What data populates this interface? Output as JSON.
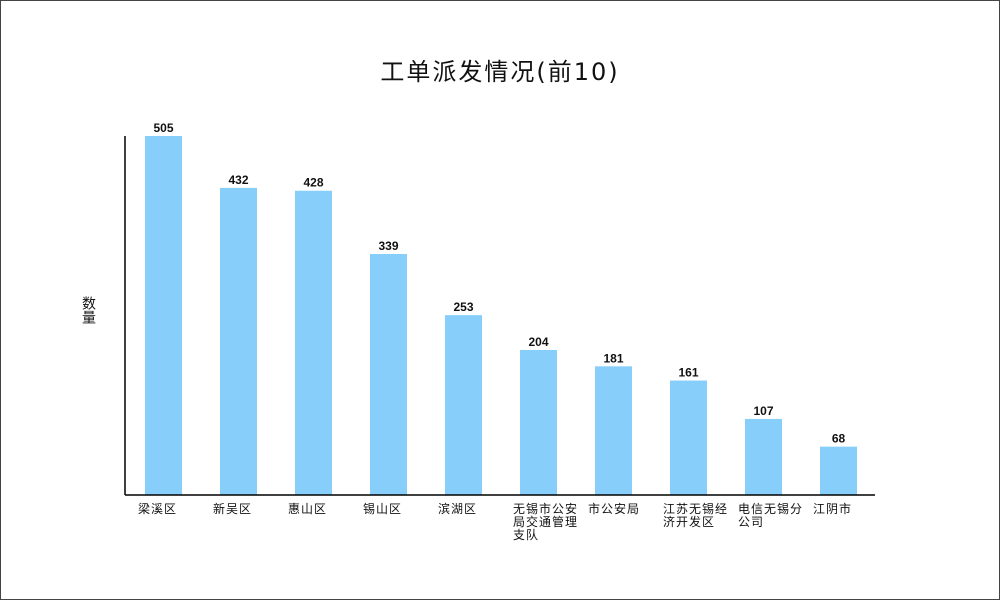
{
  "chart_data": {
    "type": "bar",
    "title": "工单派发情况(前10)",
    "xlabel": "",
    "ylabel": "数量",
    "categories": [
      "梁溪区",
      "新吴区",
      "惠山区",
      "锡山区",
      "滨湖区",
      "无锡市公安局交通管理支队",
      "市公安局",
      "江苏无锡经济开发区",
      "电信无锡分公司",
      "江阴市"
    ],
    "values": [
      505,
      432,
      428,
      339,
      253,
      204,
      181,
      161,
      107,
      68
    ],
    "ylim": [
      0,
      505
    ],
    "grid": false,
    "legend": "none",
    "bar_color": "#87cefa",
    "axis_color": "#000000"
  }
}
